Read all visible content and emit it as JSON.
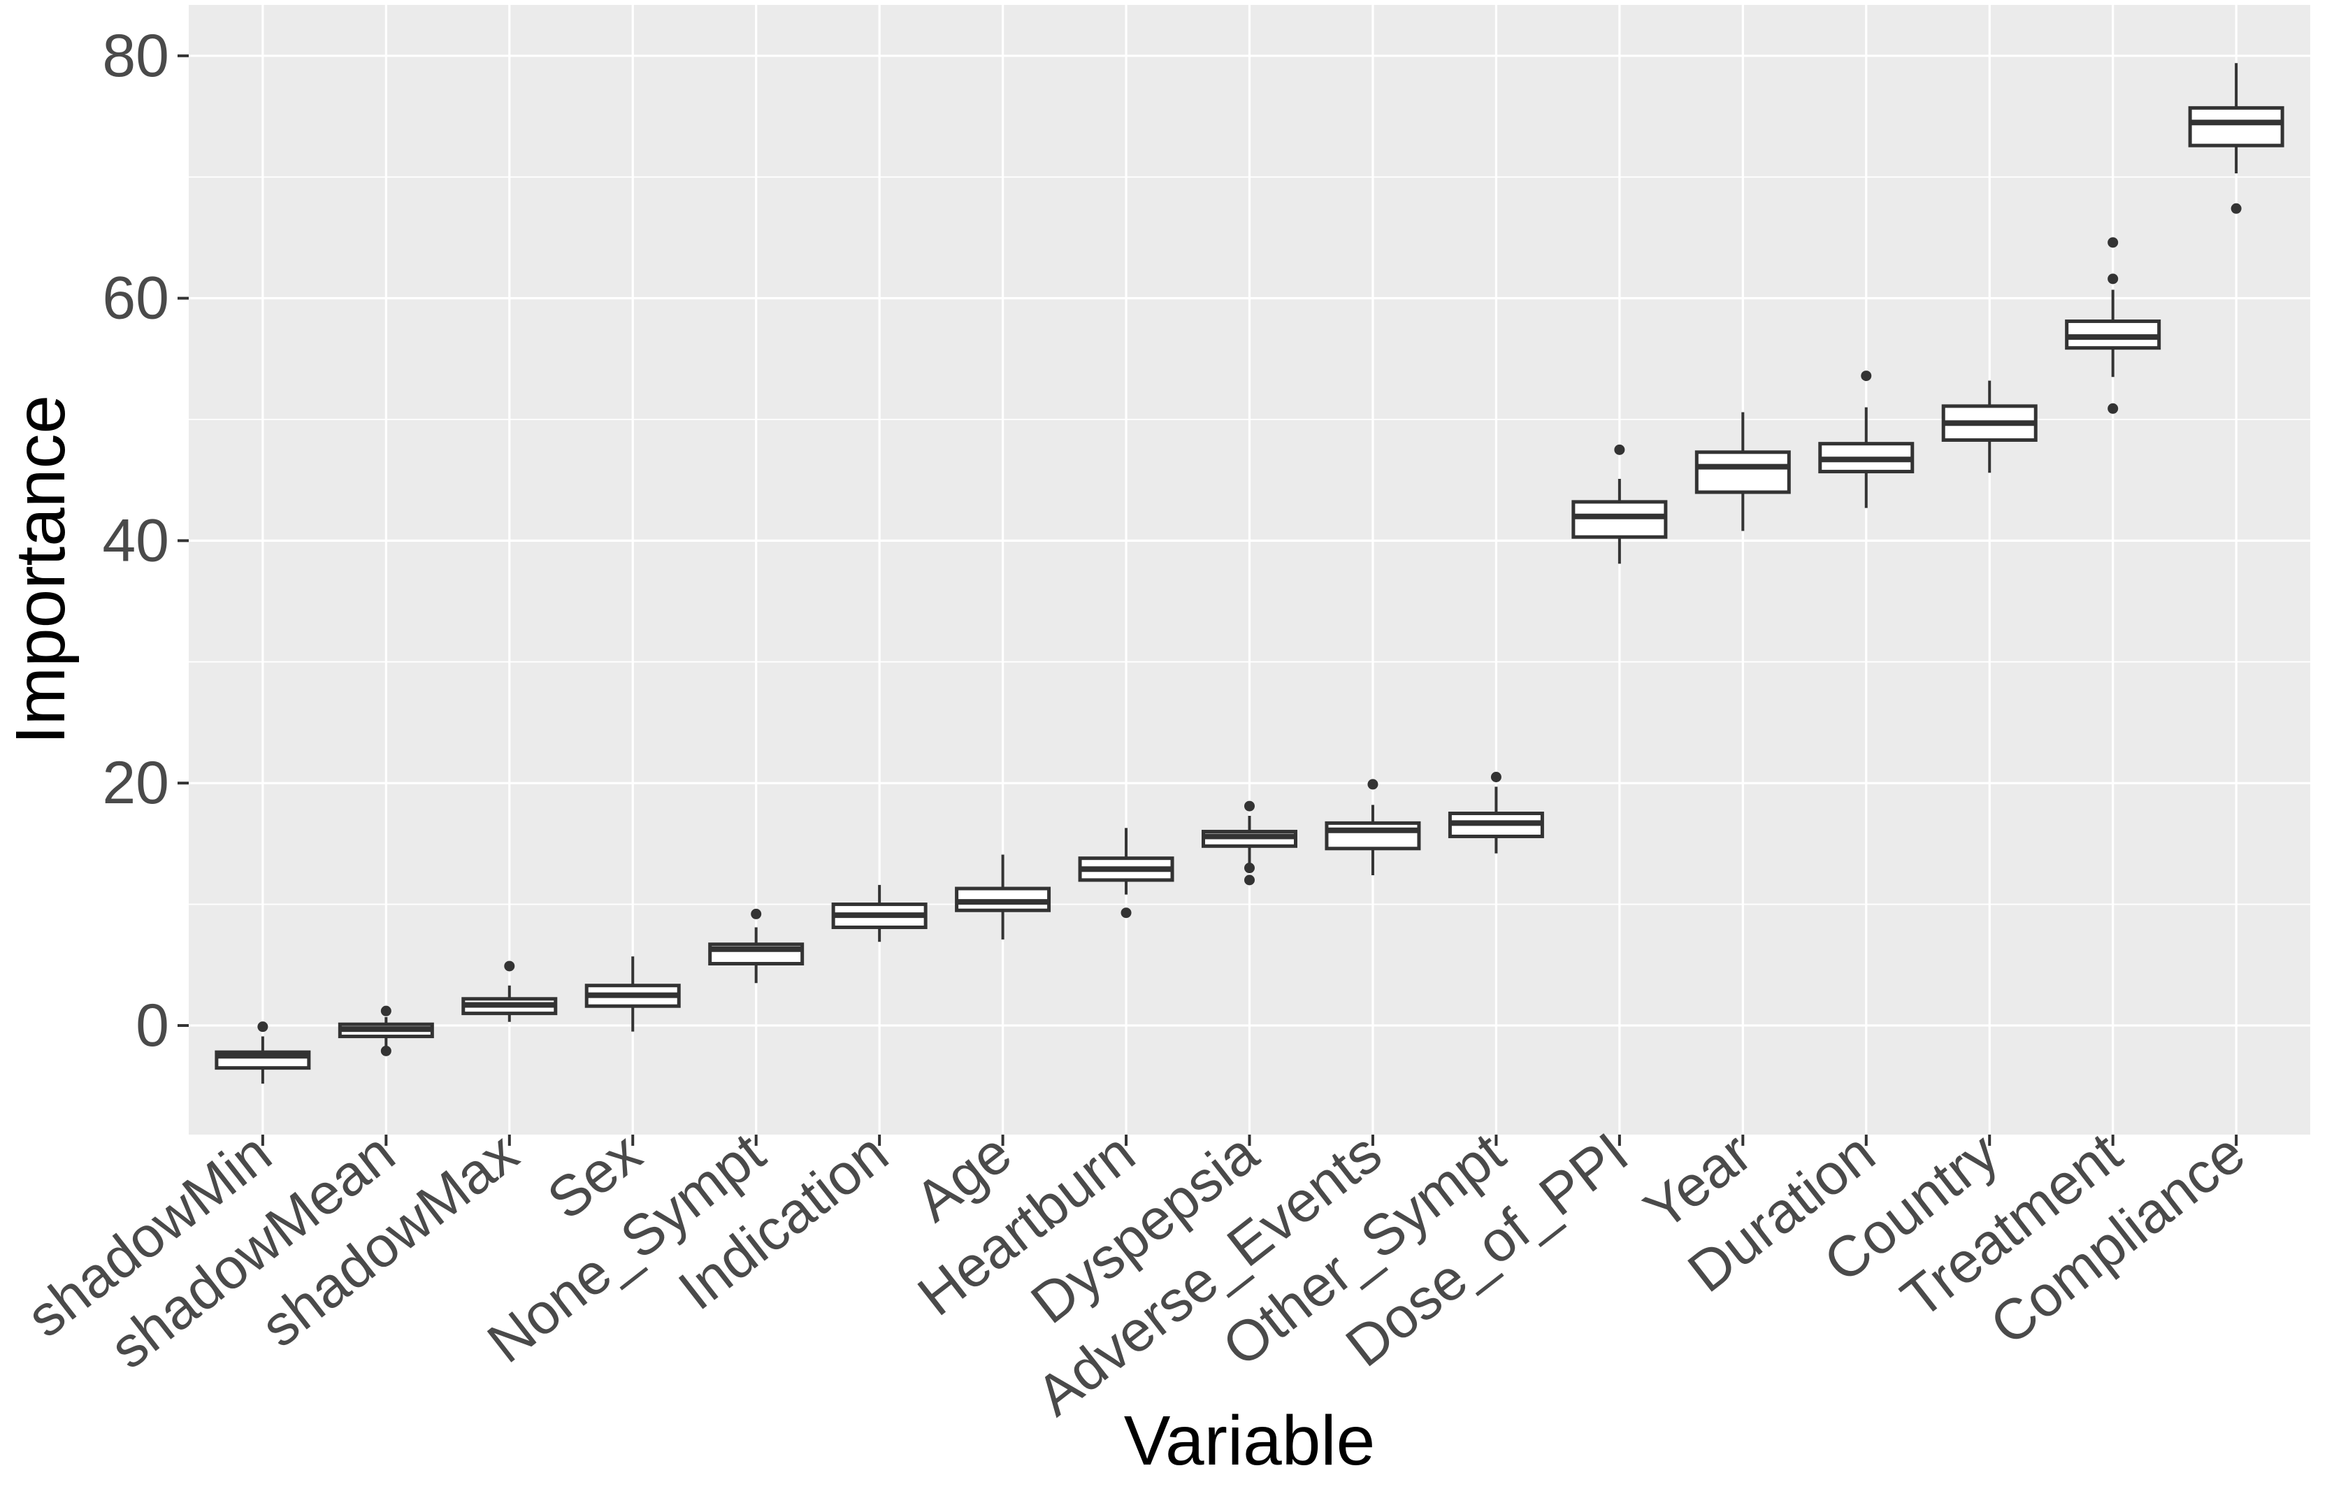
{
  "figure": {
    "title": "",
    "xlabel": "Variable",
    "ylabel": "Importance"
  },
  "colors": {
    "panel_background": "#EBEBEB",
    "grid_major": "#FFFFFF",
    "grid_minor": "#FFFFFF",
    "box_stroke": "#333333",
    "box_fill": "#FFFFFF",
    "outlier": "#333333",
    "tick_mark": "#333333",
    "tick_label": "#4A4A4A",
    "axis_title": "#000000",
    "outer_background": "#FFFFFF"
  },
  "chart_data": {
    "type": "boxplot",
    "title": "",
    "xlabel": "Variable",
    "ylabel": "Importance",
    "legend_position": "none",
    "grid": "white major and minor horizontal gridlines on gray panel, vertical major gridline at each category center",
    "ylim": [
      -9.0,
      84.2
    ],
    "y_ticks": [
      0,
      20,
      40,
      60,
      80
    ],
    "y_minor_ticks": [
      10,
      30,
      50,
      70
    ],
    "categories": [
      "shadowMin",
      "shadowMean",
      "shadowMax",
      "Sex",
      "None_Sympt",
      "Indication",
      "Age",
      "Heartburn",
      "Dyspepsia",
      "Adverse_Events",
      "Other_Sympt",
      "Dose_of_PPI",
      "Year",
      "Duration",
      "Country",
      "Treatment",
      "Compliance"
    ],
    "boxes": [
      {
        "label": "shadowMin",
        "whisker_low": -4.8,
        "q1": -3.5,
        "median": -2.5,
        "q3": -2.2,
        "whisker_high": -0.9,
        "outliers": [
          -0.1
        ]
      },
      {
        "label": "shadowMean",
        "whisker_low": -1.7,
        "q1": -0.9,
        "median": -0.3,
        "q3": 0.1,
        "whisker_high": 0.7,
        "outliers": [
          1.2,
          -2.1
        ]
      },
      {
        "label": "shadowMax",
        "whisker_low": 0.3,
        "q1": 1.0,
        "median": 1.7,
        "q3": 2.2,
        "whisker_high": 3.3,
        "outliers": [
          4.9
        ]
      },
      {
        "label": "Sex",
        "whisker_low": -0.5,
        "q1": 1.6,
        "median": 2.5,
        "q3": 3.3,
        "whisker_high": 5.7,
        "outliers": []
      },
      {
        "label": "None_Sympt",
        "whisker_low": 3.5,
        "q1": 5.1,
        "median": 6.3,
        "q3": 6.7,
        "whisker_high": 8.1,
        "outliers": [
          9.2
        ]
      },
      {
        "label": "Indication",
        "whisker_low": 6.9,
        "q1": 8.1,
        "median": 9.1,
        "q3": 10.0,
        "whisker_high": 11.6,
        "outliers": []
      },
      {
        "label": "Age",
        "whisker_low": 7.1,
        "q1": 9.5,
        "median": 10.2,
        "q3": 11.3,
        "whisker_high": 14.1,
        "outliers": []
      },
      {
        "label": "Heartburn",
        "whisker_low": 10.8,
        "q1": 12.0,
        "median": 12.9,
        "q3": 13.8,
        "whisker_high": 16.3,
        "outliers": [
          9.3
        ]
      },
      {
        "label": "Dyspepsia",
        "whisker_low": 13.3,
        "q1": 14.8,
        "median": 15.6,
        "q3": 16.0,
        "whisker_high": 17.3,
        "outliers": [
          18.1,
          13.0,
          12.0
        ]
      },
      {
        "label": "Adverse_Events",
        "whisker_low": 12.4,
        "q1": 14.6,
        "median": 16.1,
        "q3": 16.7,
        "whisker_high": 18.2,
        "outliers": [
          19.9
        ]
      },
      {
        "label": "Other_Sympt",
        "whisker_low": 14.2,
        "q1": 15.6,
        "median": 16.7,
        "q3": 17.5,
        "whisker_high": 19.7,
        "outliers": [
          20.5
        ]
      },
      {
        "label": "Dose_of_PPI",
        "whisker_low": 38.1,
        "q1": 40.3,
        "median": 42.0,
        "q3": 43.2,
        "whisker_high": 45.1,
        "outliers": [
          47.5
        ]
      },
      {
        "label": "Year",
        "whisker_low": 40.8,
        "q1": 44.0,
        "median": 46.1,
        "q3": 47.3,
        "whisker_high": 50.6,
        "outliers": []
      },
      {
        "label": "Duration",
        "whisker_low": 42.7,
        "q1": 45.7,
        "median": 46.7,
        "q3": 48.0,
        "whisker_high": 51.0,
        "outliers": [
          53.6
        ]
      },
      {
        "label": "Country",
        "whisker_low": 45.6,
        "q1": 48.3,
        "median": 49.7,
        "q3": 51.1,
        "whisker_high": 53.2,
        "outliers": []
      },
      {
        "label": "Treatment",
        "whisker_low": 53.5,
        "q1": 55.9,
        "median": 56.8,
        "q3": 58.1,
        "whisker_high": 60.7,
        "outliers": [
          64.6,
          61.6,
          50.9
        ]
      },
      {
        "label": "Compliance",
        "whisker_low": 70.3,
        "q1": 72.6,
        "median": 74.5,
        "q3": 75.7,
        "whisker_high": 79.4,
        "outliers": [
          67.4
        ]
      }
    ]
  }
}
